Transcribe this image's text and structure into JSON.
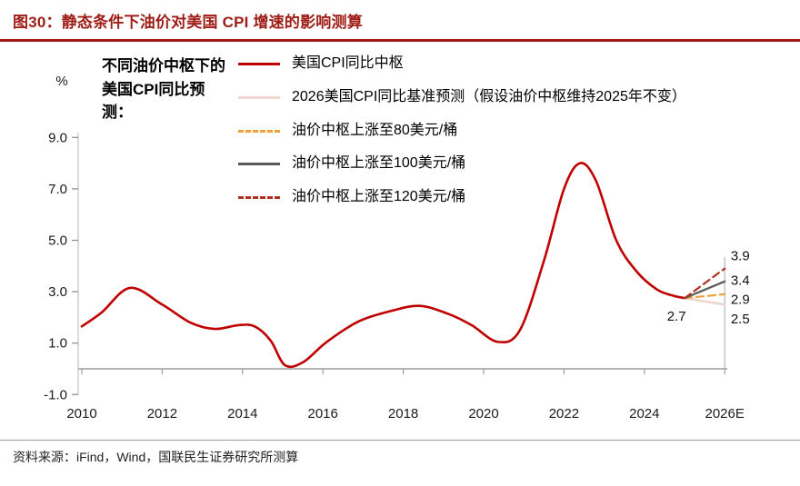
{
  "header": {
    "title": "图30：静态条件下油价对美国 CPI 增速的影响测算"
  },
  "annotation": "不同油价中枢下的美国CPI同比预测：",
  "colors": {
    "title_red": "#9E1C15",
    "main_red": "#C00000",
    "baseline_pink": "#EFD6D1",
    "orange": "#F0A13A",
    "gray": "#595959",
    "dark_red": "#B03024",
    "axis_gray": "#9B9B9B"
  },
  "legend": [
    {
      "label": "美国CPI同比中枢",
      "color": "#C00000",
      "dash": false
    },
    {
      "label": "2026美国CPI同比基准预测（假设油价中枢维持2025年不变）",
      "color": "#EFD6D1",
      "dash": false
    },
    {
      "label": "油价中枢上涨至80美元/桶",
      "color": "#F0A13A",
      "dash": true
    },
    {
      "label": "油价中枢上涨至100美元/桶",
      "color": "#595959",
      "dash": false
    },
    {
      "label": "油价中枢上涨至120美元/桶",
      "color": "#B03024",
      "dash": true
    }
  ],
  "footer": {
    "source": "资料来源：iFind，Wind，国联民生证券研究所测算"
  },
  "chart_data": {
    "type": "line",
    "title": "静态条件下油价对美国CPI增速的影响测算",
    "ylabel": "%",
    "xlabel": "",
    "grid": false,
    "legend_position": "top",
    "ylim": [
      -1,
      9.6
    ],
    "xlim": [
      2010,
      2026.8
    ],
    "yticks": [
      "9.0",
      "7.0",
      "5.0",
      "3.0",
      "1.0",
      "-1.0"
    ],
    "ytick_values": [
      9,
      7,
      5,
      3,
      1,
      -1
    ],
    "xticks": [
      "2010",
      "2012",
      "2014",
      "2016",
      "2018",
      "2020",
      "2022",
      "2024",
      "2026E"
    ],
    "xtick_values": [
      2010,
      2012,
      2014,
      2016,
      2018,
      2020,
      2022,
      2024,
      2026
    ],
    "series": [
      {
        "name": "美国CPI同比中枢",
        "color": "#C00000",
        "dash": false,
        "width": 2.6,
        "smooth": true,
        "points": [
          [
            2010.0,
            1.65
          ],
          [
            2010.5,
            2.2
          ],
          [
            2011.2,
            3.15
          ],
          [
            2012.0,
            2.5
          ],
          [
            2012.7,
            1.8
          ],
          [
            2013.3,
            1.55
          ],
          [
            2013.9,
            1.7
          ],
          [
            2014.3,
            1.65
          ],
          [
            2014.7,
            1.1
          ],
          [
            2015.05,
            0.15
          ],
          [
            2015.5,
            0.25
          ],
          [
            2016.1,
            1.05
          ],
          [
            2016.9,
            1.85
          ],
          [
            2017.7,
            2.25
          ],
          [
            2018.4,
            2.45
          ],
          [
            2019.1,
            2.15
          ],
          [
            2019.7,
            1.7
          ],
          [
            2020.35,
            1.05
          ],
          [
            2020.9,
            1.5
          ],
          [
            2021.5,
            4.2
          ],
          [
            2022.0,
            7.0
          ],
          [
            2022.4,
            8.0
          ],
          [
            2022.8,
            7.3
          ],
          [
            2023.3,
            5.0
          ],
          [
            2023.8,
            3.8
          ],
          [
            2024.3,
            3.1
          ],
          [
            2024.7,
            2.85
          ],
          [
            2025.0,
            2.75
          ]
        ]
      },
      {
        "name": "2026美国CPI同比基准预测（假设油价中枢维持2025年不变）",
        "color": "#EFD6D1",
        "dash": false,
        "width": 2.6,
        "smooth": false,
        "points": [
          [
            2025.0,
            2.75
          ],
          [
            2026.0,
            2.5
          ]
        ]
      },
      {
        "name": "油价中枢上涨至80美元/桶",
        "color": "#F0A13A",
        "dash": true,
        "width": 2.2,
        "smooth": false,
        "points": [
          [
            2025.0,
            2.75
          ],
          [
            2026.0,
            2.9
          ]
        ]
      },
      {
        "name": "油价中枢上涨至100美元/桶",
        "color": "#595959",
        "dash": false,
        "width": 2.2,
        "smooth": false,
        "points": [
          [
            2025.0,
            2.75
          ],
          [
            2026.0,
            3.4
          ]
        ]
      },
      {
        "name": "油价中枢上涨至120美元/桶",
        "color": "#B03024",
        "dash": true,
        "width": 2.2,
        "smooth": false,
        "points": [
          [
            2025.0,
            2.75
          ],
          [
            2026.0,
            3.9
          ]
        ]
      }
    ],
    "end_labels": [
      {
        "text": "3.9",
        "x": 2026.15,
        "y": 4.4
      },
      {
        "text": "3.4",
        "x": 2026.15,
        "y": 3.45
      },
      {
        "text": "2.9",
        "x": 2026.15,
        "y": 2.7
      },
      {
        "text": "2.5",
        "x": 2026.15,
        "y": 1.95
      }
    ],
    "point_labels": [
      {
        "text": "2.7",
        "x": 2024.8,
        "y": 2.05
      }
    ]
  }
}
